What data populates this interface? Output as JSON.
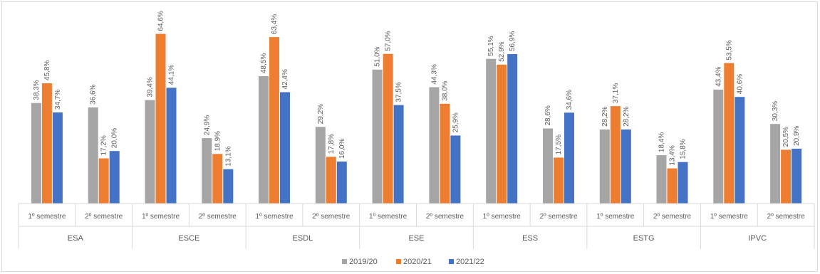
{
  "chart_data": {
    "type": "bar",
    "title": "",
    "xlabel": "",
    "ylabel": "",
    "ylim": [
      0,
      68
    ],
    "grid": false,
    "legend_position": "bottom",
    "groups": [
      {
        "name": "ESA",
        "subcategories": [
          "1º semestre",
          "2º semestre"
        ]
      },
      {
        "name": "ESCE",
        "subcategories": [
          "1º semestre",
          "2º semestre"
        ]
      },
      {
        "name": "ESDL",
        "subcategories": [
          "1º semestre",
          "2º semestre"
        ]
      },
      {
        "name": "ESE",
        "subcategories": [
          "1º semestre",
          "2º semestre"
        ]
      },
      {
        "name": "ESS",
        "subcategories": [
          "1º semestre",
          "2º semestre"
        ]
      },
      {
        "name": "ESTG",
        "subcategories": [
          "1º semestre",
          "2º semestre"
        ]
      },
      {
        "name": "IPVC",
        "subcategories": [
          "1º semestre",
          "2º semestre"
        ]
      }
    ],
    "series": [
      {
        "name": "2019/20",
        "color": "#a5a5a5",
        "values": [
          38.3,
          36.6,
          39.4,
          24.9,
          48.5,
          29.2,
          51.0,
          44.3,
          55.1,
          28.6,
          28.2,
          18.4,
          43.4,
          30.3
        ],
        "labels": [
          "38,3%",
          "36,6%",
          "39,4%",
          "24,9%",
          "48,5%",
          "29,2%",
          "51,0%",
          "44,3%",
          "55,1%",
          "28,6%",
          "28,2%",
          "18,4%",
          "43,4%",
          "30,3%"
        ]
      },
      {
        "name": "2020/21",
        "color": "#ed7d31",
        "values": [
          45.8,
          17.2,
          64.6,
          18.9,
          63.4,
          17.8,
          57.0,
          38.0,
          52.9,
          17.5,
          37.1,
          13.4,
          53.5,
          20.5
        ],
        "labels": [
          "45,8%",
          "17,2%",
          "64,6%",
          "18,9%",
          "63,4%",
          "17,8%",
          "57,0%",
          "38,0%",
          "52,9%",
          "17,5%",
          "37,1%",
          "13,4%",
          "53,5%",
          "20,5%"
        ]
      },
      {
        "name": "2021/22",
        "color": "#4472c4",
        "values": [
          34.7,
          20.0,
          44.1,
          13.1,
          42.4,
          16.0,
          37.5,
          25.9,
          56.9,
          34.6,
          28.2,
          15.8,
          40.6,
          20.9
        ],
        "labels": [
          "34,7%",
          "20,0%",
          "44,1%",
          "13,1%",
          "42,4%",
          "16,0%",
          "37,5%",
          "25,9%",
          "56,9%",
          "34,6%",
          "28,2%",
          "15,8%",
          "40,6%",
          "20,9%"
        ]
      }
    ]
  }
}
